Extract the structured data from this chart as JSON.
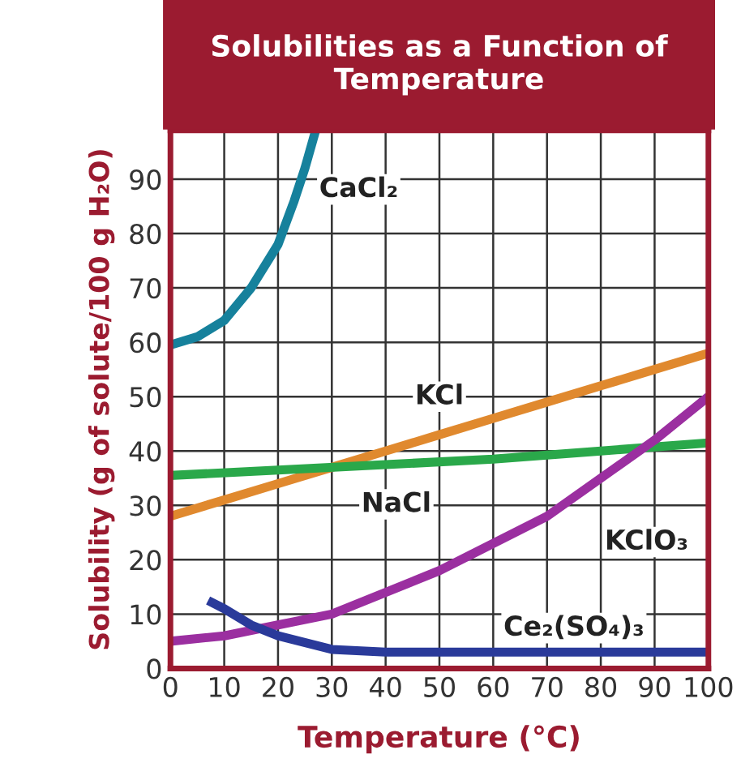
{
  "chart_data": {
    "type": "line",
    "title": "Solubilities as a Function of Temperature",
    "xlabel": "Temperature (°C)",
    "ylabel": "Solubility (g of solute/100 g H₂O)",
    "series": [
      {
        "name": "CaCl₂",
        "color": "#16819c",
        "x": [
          0,
          5,
          10,
          15,
          20,
          23,
          25,
          27
        ],
        "values": [
          59.5,
          61,
          64,
          70,
          78,
          86,
          92,
          99
        ]
      },
      {
        "name": "KCl",
        "color": "#e0892e",
        "x": [
          0,
          10,
          20,
          30,
          40,
          50,
          60,
          70,
          80,
          90,
          100
        ],
        "values": [
          28,
          31,
          34,
          37,
          40,
          43,
          46,
          49,
          52,
          55,
          58
        ]
      },
      {
        "name": "NaCl",
        "color": "#2aa84a",
        "x": [
          0,
          20,
          40,
          60,
          80,
          100
        ],
        "values": [
          35.5,
          36.5,
          37.5,
          38.5,
          40,
          41.5
        ]
      },
      {
        "name": "KClO₃",
        "color": "#9b2fa0",
        "x": [
          0,
          10,
          20,
          30,
          40,
          50,
          60,
          70,
          80,
          90,
          100
        ],
        "values": [
          5,
          6,
          8,
          10,
          14,
          18,
          23,
          28,
          35,
          42,
          50
        ]
      },
      {
        "name": "Ce₂(SO₄)₃",
        "color": "#2a3a9a",
        "x": [
          7,
          10,
          15,
          20,
          30,
          40,
          60,
          80,
          100
        ],
        "values": [
          12.5,
          11,
          8,
          6,
          3.5,
          3,
          3,
          3,
          3
        ]
      }
    ],
    "xlim": [
      0,
      100
    ],
    "ylim": [
      0,
      99
    ],
    "xticks": [
      0,
      10,
      20,
      30,
      40,
      50,
      60,
      70,
      80,
      90,
      100
    ],
    "yticks": [
      0,
      10,
      20,
      30,
      40,
      50,
      60,
      70,
      80,
      90
    ],
    "grid": true,
    "legend": false,
    "marker": "none",
    "line_style": "solid"
  }
}
